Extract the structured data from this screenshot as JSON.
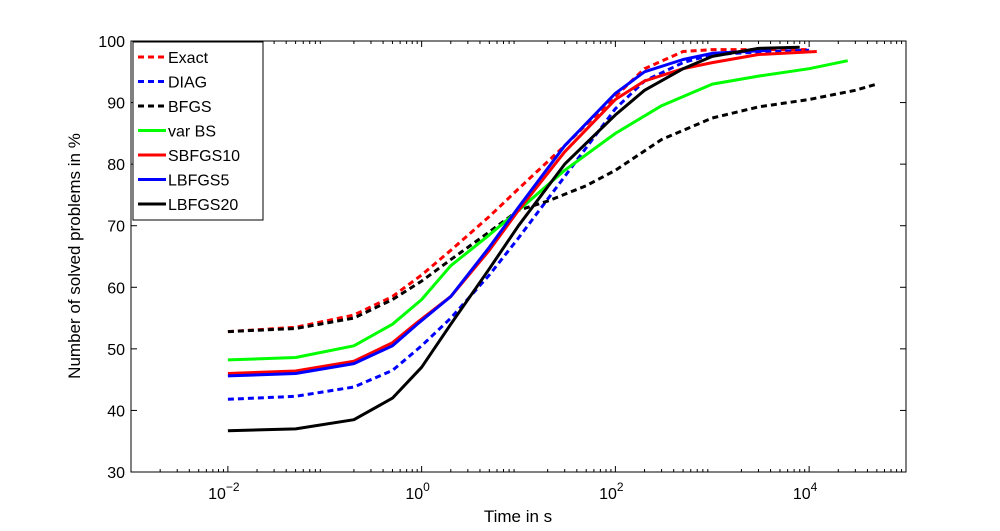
{
  "chart_data": {
    "type": "line",
    "title": "",
    "xlabel": "Time in s",
    "ylabel": "Number of solved problems in %",
    "xscale": "log",
    "xlim": [
      0.001,
      100000
    ],
    "ylim": [
      30,
      100
    ],
    "xticks": [
      {
        "value": 0.01,
        "base": "10",
        "exp": "−2"
      },
      {
        "value": 1,
        "base": "10",
        "exp": "0"
      },
      {
        "value": 100,
        "base": "10",
        "exp": "2"
      },
      {
        "value": 10000,
        "base": "10",
        "exp": "4"
      }
    ],
    "yticks": [
      "30",
      "40",
      "50",
      "60",
      "70",
      "80",
      "90",
      "100"
    ],
    "grid": false,
    "legend_position": "top-left",
    "series": [
      {
        "name": "Exact",
        "color": "#ff0000",
        "dashed": true,
        "points": [
          [
            0.01,
            52.8
          ],
          [
            0.05,
            53.5
          ],
          [
            0.2,
            55.5
          ],
          [
            0.5,
            58.5
          ],
          [
            1,
            62
          ],
          [
            2,
            66
          ],
          [
            5,
            71.5
          ],
          [
            10,
            76
          ],
          [
            30,
            83
          ],
          [
            100,
            91
          ],
          [
            200,
            95.5
          ],
          [
            500,
            98.3
          ],
          [
            1000,
            98.6
          ],
          [
            4000,
            98.6
          ],
          [
            10000,
            98.6
          ]
        ]
      },
      {
        "name": "DIAG",
        "color": "#0000ff",
        "dashed": true,
        "points": [
          [
            0.01,
            41.8
          ],
          [
            0.05,
            42.3
          ],
          [
            0.2,
            43.8
          ],
          [
            0.5,
            46.5
          ],
          [
            1,
            50.5
          ],
          [
            2,
            55
          ],
          [
            5,
            62
          ],
          [
            10,
            68
          ],
          [
            30,
            78
          ],
          [
            100,
            89
          ],
          [
            200,
            93.5
          ],
          [
            500,
            96.5
          ],
          [
            1000,
            97.8
          ],
          [
            4000,
            98.3
          ],
          [
            10000,
            98.5
          ]
        ]
      },
      {
        "name": "BFGS",
        "color": "#000000",
        "dashed": true,
        "points": [
          [
            0.01,
            52.8
          ],
          [
            0.05,
            53.3
          ],
          [
            0.2,
            55
          ],
          [
            0.5,
            58
          ],
          [
            1,
            61
          ],
          [
            2,
            64.5
          ],
          [
            5,
            69
          ],
          [
            10,
            72.5
          ],
          [
            20,
            74
          ],
          [
            50,
            76.5
          ],
          [
            100,
            79
          ],
          [
            300,
            84
          ],
          [
            1000,
            87.5
          ],
          [
            3000,
            89.3
          ],
          [
            10000,
            90.5
          ],
          [
            30000,
            92
          ],
          [
            50000,
            93
          ]
        ]
      },
      {
        "name": "var BS",
        "color": "#00ff00",
        "dashed": false,
        "points": [
          [
            0.01,
            48.2
          ],
          [
            0.05,
            48.6
          ],
          [
            0.2,
            50.5
          ],
          [
            0.5,
            54
          ],
          [
            1,
            58
          ],
          [
            2,
            63.5
          ],
          [
            5,
            68.5
          ],
          [
            10,
            72.5
          ],
          [
            30,
            79
          ],
          [
            100,
            85
          ],
          [
            300,
            89.5
          ],
          [
            1000,
            93
          ],
          [
            3000,
            94.3
          ],
          [
            10000,
            95.5
          ],
          [
            25000,
            96.8
          ]
        ]
      },
      {
        "name": "SBFGS10",
        "color": "#ff0000",
        "dashed": false,
        "points": [
          [
            0.01,
            46
          ],
          [
            0.05,
            46.4
          ],
          [
            0.2,
            48
          ],
          [
            0.5,
            51
          ],
          [
            0.9,
            54.3
          ],
          [
            2,
            58.5
          ],
          [
            5,
            66
          ],
          [
            10,
            72.5
          ],
          [
            30,
            82
          ],
          [
            100,
            90.5
          ],
          [
            200,
            93.5
          ],
          [
            500,
            95.5
          ],
          [
            1000,
            96.5
          ],
          [
            3000,
            97.8
          ],
          [
            12000,
            98.3
          ]
        ]
      },
      {
        "name": "LBFGS5",
        "color": "#0000ff",
        "dashed": false,
        "points": [
          [
            0.01,
            45.6
          ],
          [
            0.05,
            46
          ],
          [
            0.2,
            47.6
          ],
          [
            0.5,
            50.5
          ],
          [
            0.9,
            54
          ],
          [
            2,
            58.5
          ],
          [
            5,
            66.5
          ],
          [
            10,
            73
          ],
          [
            30,
            83
          ],
          [
            100,
            91.5
          ],
          [
            200,
            95
          ],
          [
            500,
            97
          ],
          [
            1000,
            98
          ],
          [
            4000,
            98.5
          ]
        ]
      },
      {
        "name": "LBFGS20",
        "color": "#000000",
        "dashed": false,
        "points": [
          [
            0.01,
            36.7
          ],
          [
            0.05,
            37
          ],
          [
            0.2,
            38.5
          ],
          [
            0.5,
            42
          ],
          [
            1,
            47
          ],
          [
            2,
            54
          ],
          [
            5,
            63
          ],
          [
            10,
            70
          ],
          [
            30,
            80
          ],
          [
            100,
            88
          ],
          [
            200,
            92
          ],
          [
            500,
            95.5
          ],
          [
            1000,
            97.5
          ],
          [
            3000,
            98.8
          ],
          [
            8000,
            99
          ]
        ]
      }
    ]
  }
}
